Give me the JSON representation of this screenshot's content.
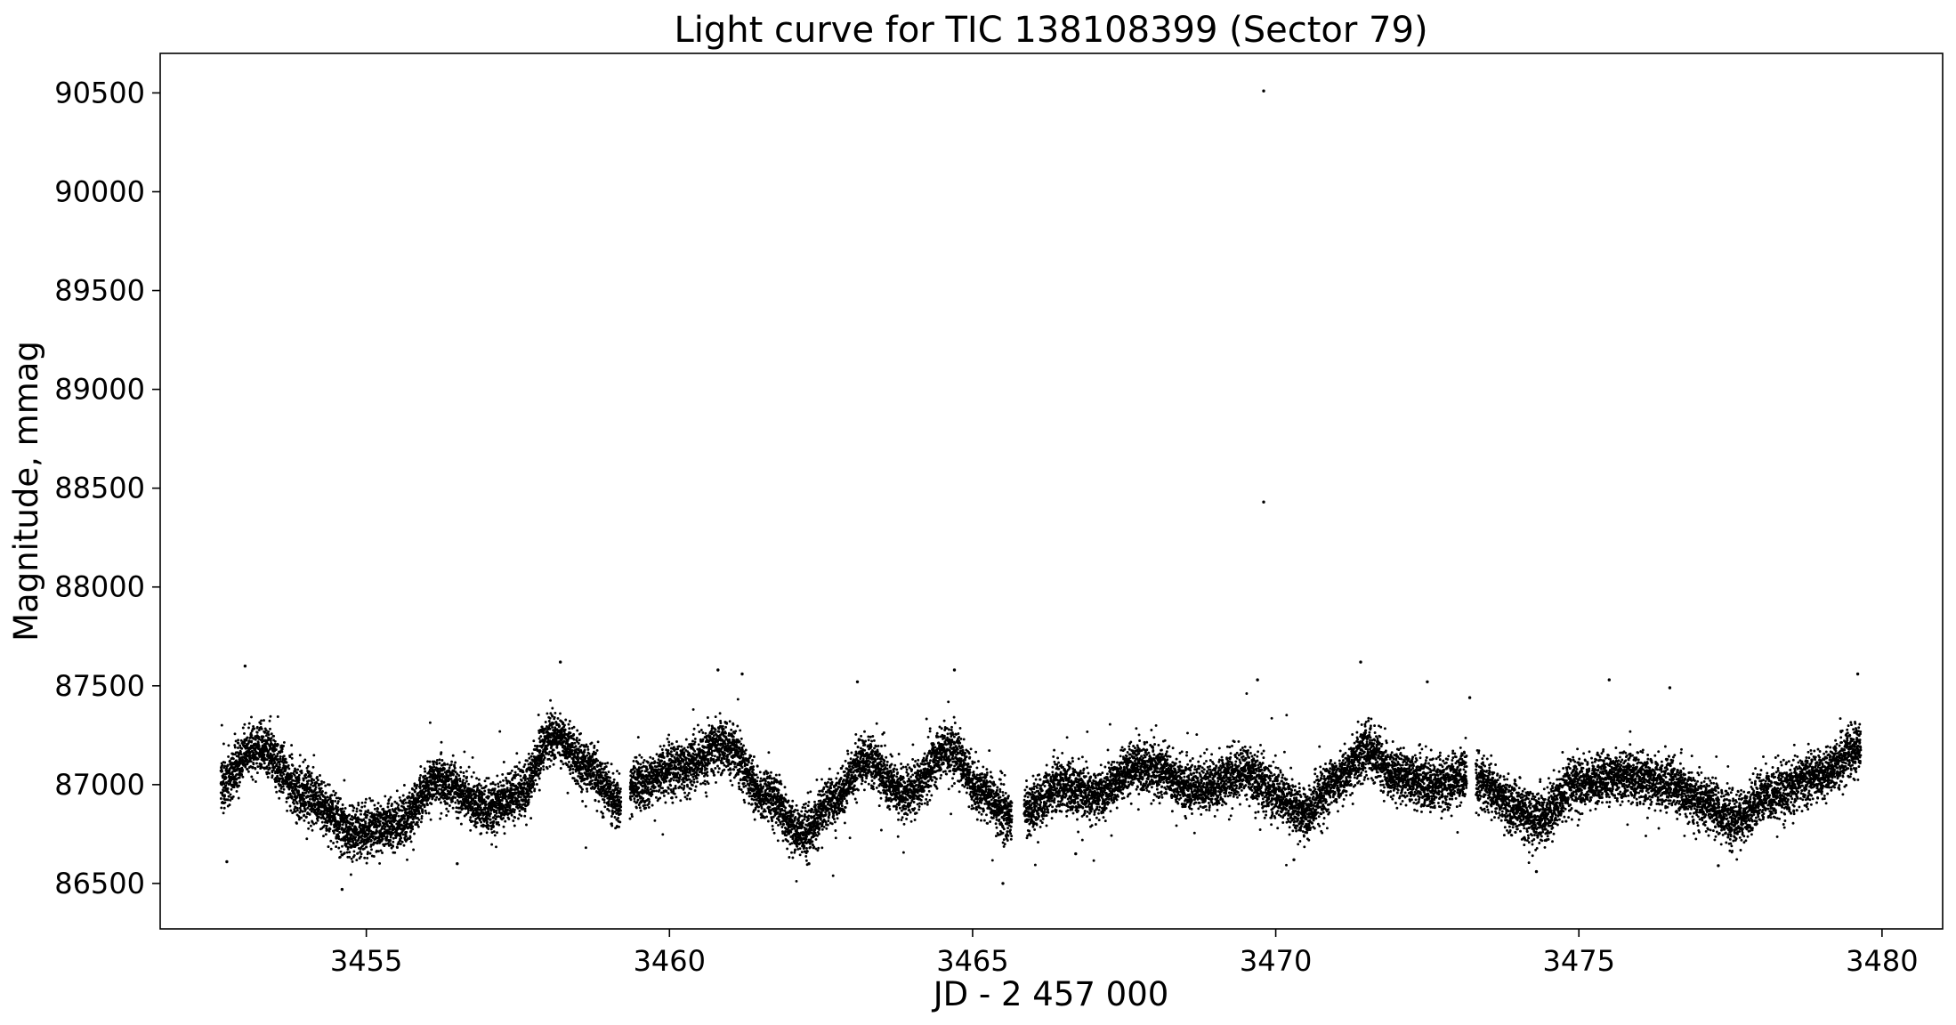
{
  "chart_data": {
    "type": "scatter",
    "title": "Light curve for TIC 138108399 (Sector 79)",
    "xlabel": "JD - 2 457 000",
    "ylabel": "Magnitude, mmag",
    "xlim": [
      3451.6,
      3481.0
    ],
    "ylim": [
      86270,
      90700
    ],
    "x_ticks": [
      3455,
      3460,
      3465,
      3470,
      3475,
      3480
    ],
    "y_ticks": [
      86500,
      87000,
      87500,
      88000,
      88500,
      89000,
      89500,
      90000,
      90500
    ],
    "grid": false,
    "legend": "none",
    "marker_color": "#000000",
    "series": [
      {
        "segments": [
          {
            "x_start": 3452.6,
            "x_end": 3459.2,
            "cadence_days": 0.0014
          },
          {
            "x_start": 3459.35,
            "x_end": 3465.65,
            "cadence_days": 0.0014
          },
          {
            "x_start": 3465.85,
            "x_end": 3473.15,
            "cadence_days": 0.0014
          },
          {
            "x_start": 3473.3,
            "x_end": 3479.65,
            "cadence_days": 0.0014
          }
        ],
        "trend_knots": [
          [
            3452.6,
            87000
          ],
          [
            3453.2,
            87200
          ],
          [
            3454.0,
            86950
          ],
          [
            3454.8,
            86760
          ],
          [
            3455.5,
            86800
          ],
          [
            3456.2,
            87020
          ],
          [
            3457.0,
            86880
          ],
          [
            3457.5,
            86950
          ],
          [
            3458.1,
            87250
          ],
          [
            3458.6,
            87100
          ],
          [
            3459.2,
            86900
          ],
          [
            3459.4,
            87000
          ],
          [
            3460.2,
            87080
          ],
          [
            3460.9,
            87200
          ],
          [
            3461.6,
            86950
          ],
          [
            3462.2,
            86750
          ],
          [
            3462.7,
            86920
          ],
          [
            3463.2,
            87120
          ],
          [
            3463.9,
            86950
          ],
          [
            3464.6,
            87170
          ],
          [
            3465.2,
            86950
          ],
          [
            3465.65,
            86820
          ],
          [
            3465.85,
            86880
          ],
          [
            3466.5,
            87000
          ],
          [
            3467.0,
            86940
          ],
          [
            3467.8,
            87100
          ],
          [
            3468.7,
            86980
          ],
          [
            3469.5,
            87060
          ],
          [
            3470.0,
            86950
          ],
          [
            3470.5,
            86850
          ],
          [
            3471.0,
            87020
          ],
          [
            3471.5,
            87170
          ],
          [
            3472.0,
            87050
          ],
          [
            3472.6,
            87000
          ],
          [
            3473.15,
            87040
          ],
          [
            3473.3,
            87020
          ],
          [
            3474.0,
            86880
          ],
          [
            3474.3,
            86820
          ],
          [
            3475.0,
            87000
          ],
          [
            3475.8,
            87040
          ],
          [
            3476.5,
            87000
          ],
          [
            3477.0,
            86920
          ],
          [
            3477.5,
            86820
          ],
          [
            3478.2,
            86950
          ],
          [
            3479.0,
            87050
          ],
          [
            3479.65,
            87190
          ]
        ],
        "scatter_sigma_mmag": 75,
        "outliers": [
          [
            3469.8,
            90510
          ],
          [
            3469.8,
            88430
          ],
          [
            3465.5,
            86500
          ],
          [
            3452.7,
            86610
          ],
          [
            3454.6,
            86470
          ],
          [
            3458.2,
            87620
          ],
          [
            3471.4,
            87620
          ],
          [
            3464.7,
            87580
          ],
          [
            3460.8,
            87580
          ],
          [
            3453.0,
            87600
          ],
          [
            3479.6,
            87560
          ],
          [
            3469.7,
            87530
          ],
          [
            3475.5,
            87530
          ],
          [
            3463.1,
            87520
          ],
          [
            3472.5,
            87520
          ],
          [
            3461.2,
            87560
          ],
          [
            3473.2,
            87440
          ],
          [
            3476.5,
            87490
          ],
          [
            3470.3,
            86620
          ],
          [
            3474.3,
            86560
          ],
          [
            3462.3,
            86600
          ],
          [
            3477.3,
            86590
          ],
          [
            3456.5,
            86600
          ],
          [
            3466.7,
            86650
          ]
        ]
      }
    ]
  }
}
